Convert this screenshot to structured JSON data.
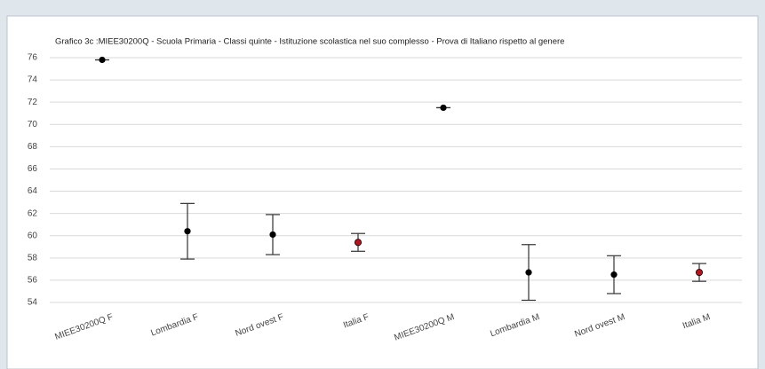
{
  "chart_data": {
    "type": "errorbar",
    "title": "Grafico 3c :MIEE30200Q - Scuola Primaria - Classi quinte - Istituzione scolastica nel suo complesso - Prova di Italiano rispetto al genere",
    "categories": [
      "MIEE30200Q F",
      "Lombardia F",
      "Nord ovest F",
      "Italia F",
      "MIEE30200Q M",
      "Lombardia M",
      "Nord ovest M",
      "Italia M"
    ],
    "values": [
      75.8,
      60.4,
      60.1,
      59.4,
      71.5,
      56.7,
      56.5,
      56.7
    ],
    "errors": [
      0,
      2.5,
      1.8,
      0.8,
      0,
      2.5,
      1.7,
      0.8
    ],
    "point_colors": [
      "#000000",
      "#000000",
      "#000000",
      "#c0101a",
      "#000000",
      "#000000",
      "#000000",
      "#c0101a"
    ],
    "ylim": [
      54,
      76
    ],
    "yticks": [
      54,
      56,
      58,
      60,
      62,
      64,
      66,
      68,
      70,
      72,
      74,
      76
    ],
    "grid": true
  }
}
